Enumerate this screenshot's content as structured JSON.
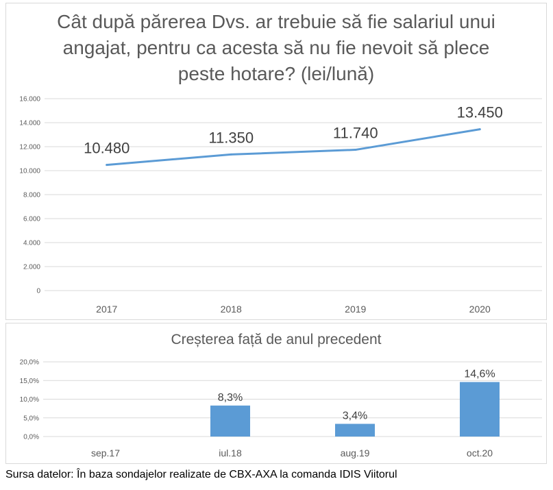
{
  "chart_data": [
    {
      "type": "line",
      "title": "Cât după părerea Dvs. ar trebuie să fie salariul unui angajat, pentru ca acesta să nu fie nevoit să plece peste hotare? (lei/lună)",
      "categories": [
        "2017",
        "2018",
        "2019",
        "2020"
      ],
      "values": [
        10480,
        11350,
        11740,
        13450
      ],
      "data_labels": [
        "10.480",
        "11.350",
        "11.740",
        "13.450"
      ],
      "ylim": [
        0,
        16000
      ],
      "yticks": [
        "0",
        "2.000",
        "4.000",
        "6.000",
        "8.000",
        "10.000",
        "12.000",
        "14.000",
        "16.000"
      ],
      "grid": true,
      "color": "#5b9bd5"
    },
    {
      "type": "bar",
      "title": "Creșterea față de anul precedent",
      "categories": [
        "sep.17",
        "iul.18",
        "aug.19",
        "oct.20"
      ],
      "values": [
        null,
        8.3,
        3.4,
        14.6
      ],
      "data_labels": [
        "",
        "8,3%",
        "3,4%",
        "14,6%"
      ],
      "ylim": [
        0,
        20
      ],
      "yticks": [
        "0,0%",
        "5,0%",
        "10,0%",
        "15,0%",
        "20,0%"
      ],
      "grid": true,
      "color": "#5b9bd5"
    }
  ],
  "source": "Sursa datelor: În baza sondajelor realizate de CBX-AXA la comanda IDIS Viitorul"
}
